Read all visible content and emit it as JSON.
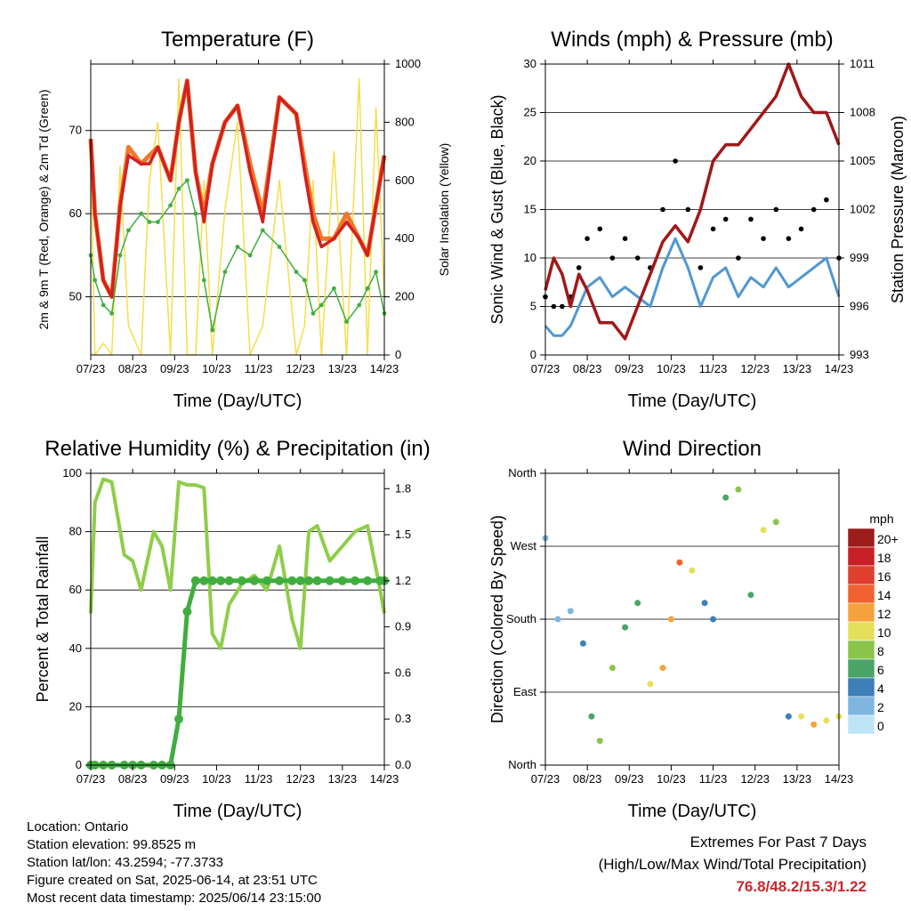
{
  "x_ticks": [
    "07/23",
    "08/23",
    "09/23",
    "10/23",
    "11/23",
    "12/23",
    "13/23",
    "14/23"
  ],
  "colors": {
    "temp_2m": "#d42020",
    "temp_9m": "#f07828",
    "dewpoint": "#3fae3f",
    "solar": "#f5de4a",
    "wind": "#4f97d3",
    "gust": "#000000",
    "pressure": "#a01818",
    "rh": "#8fcd4a",
    "precip": "#3fae3f",
    "extremes": "#c8282d"
  },
  "chart_data": [
    {
      "type": "line",
      "title": "Temperature (F)",
      "xlabel": "Time (Day/UTC)",
      "ylabel": "2m & 9m T (Red, Orange) & 2m Td (Green)",
      "ylabel_right": "Solar Insolation (Yellow)",
      "ylim": [
        43,
        78
      ],
      "yticks": [
        50,
        60,
        70
      ],
      "ylim_right": [
        0,
        1000
      ],
      "yticks_right": [
        0,
        200,
        400,
        600,
        800,
        1000
      ],
      "grid": true,
      "x": [
        0,
        0.1,
        0.3,
        0.5,
        0.7,
        0.9,
        1.2,
        1.4,
        1.6,
        1.9,
        2.1,
        2.3,
        2.5,
        2.7,
        2.9,
        3.2,
        3.5,
        3.8,
        4.1,
        4.5,
        4.9,
        5.1,
        5.3,
        5.5,
        5.8,
        6.1,
        6.4,
        6.6,
        6.8,
        7.0
      ],
      "series": [
        {
          "name": "2m T",
          "values": [
            69,
            60,
            52,
            50,
            61,
            67,
            66,
            66,
            68,
            64,
            71,
            76,
            65,
            59,
            66,
            71,
            73,
            65,
            59,
            74,
            72,
            65,
            59,
            56,
            57,
            59,
            57,
            55,
            61,
            67
          ]
        },
        {
          "name": "9m T",
          "values": [
            69,
            60,
            52,
            50,
            61,
            68,
            66,
            67,
            68,
            64,
            71,
            76,
            65,
            60,
            66,
            71,
            73,
            66,
            60,
            74,
            72,
            66,
            60,
            57,
            57,
            60,
            57,
            55,
            61,
            67
          ]
        },
        {
          "name": "2m Td",
          "values": [
            55,
            52,
            49,
            48,
            55,
            58,
            60,
            59,
            59,
            61,
            63,
            64,
            60,
            52,
            46,
            53,
            56,
            55,
            58,
            56,
            53,
            52,
            48,
            49,
            51,
            47,
            49,
            51,
            53,
            48
          ]
        },
        {
          "name": "Solar",
          "values": [
            700,
            0,
            40,
            0,
            650,
            100,
            0,
            600,
            800,
            0,
            950,
            0,
            0,
            600,
            0,
            500,
            800,
            0,
            100,
            600,
            0,
            100,
            600,
            0,
            700,
            0,
            950,
            0,
            850,
            200
          ]
        }
      ]
    },
    {
      "type": "scatter",
      "title": "Winds (mph) & Pressure (mb)",
      "xlabel": "Time (Day/UTC)",
      "ylabel": "Sonic Wind & Gust (Blue, Black)",
      "ylabel_right": "Station Pressure (Maroon)",
      "ylim": [
        0,
        30
      ],
      "yticks": [
        0,
        5,
        10,
        15,
        20,
        25,
        30
      ],
      "ylim_right": [
        993,
        1011
      ],
      "yticks_right": [
        993,
        996,
        999,
        1002,
        1005,
        1008,
        1011
      ],
      "grid": true,
      "x": [
        0,
        0.2,
        0.4,
        0.6,
        0.8,
        1.0,
        1.3,
        1.6,
        1.9,
        2.2,
        2.5,
        2.8,
        3.1,
        3.4,
        3.7,
        4.0,
        4.3,
        4.6,
        4.9,
        5.2,
        5.5,
        5.8,
        6.1,
        6.4,
        6.7,
        7.0
      ],
      "series": [
        {
          "name": "Sonic Wind",
          "values": [
            3,
            2,
            2,
            3,
            5,
            7,
            8,
            6,
            7,
            6,
            5,
            9,
            12,
            9,
            5,
            8,
            9,
            6,
            8,
            7,
            9,
            7,
            8,
            9,
            10,
            6
          ]
        },
        {
          "name": "Gust",
          "values": [
            6,
            5,
            5,
            6,
            9,
            12,
            13,
            10,
            12,
            10,
            9,
            15,
            20,
            15,
            9,
            13,
            14,
            10,
            14,
            12,
            15,
            12,
            13,
            15,
            16,
            10
          ]
        },
        {
          "name": "Station Pressure",
          "values": [
            997,
            999,
            998,
            996,
            998,
            997,
            995,
            995,
            994,
            996,
            998,
            1000,
            1001,
            1000,
            1002,
            1005,
            1006,
            1006,
            1007,
            1008,
            1009,
            1011,
            1009,
            1008,
            1008,
            1006
          ]
        }
      ]
    },
    {
      "type": "line",
      "title": "Relative Humidity (%) & Precipitation (in)",
      "xlabel": "Time (Day/UTC)",
      "ylabel": "Percent & Total Rainfall",
      "ylim": [
        0,
        100
      ],
      "yticks": [
        0,
        20,
        40,
        60,
        80,
        100
      ],
      "ylim_right": [
        0,
        1.9
      ],
      "yticks_right": [
        0.0,
        0.3,
        0.6,
        0.9,
        1.2,
        1.5,
        1.8
      ],
      "grid": true,
      "x": [
        0,
        0.1,
        0.3,
        0.5,
        0.8,
        1.0,
        1.2,
        1.5,
        1.7,
        1.9,
        2.1,
        2.3,
        2.5,
        2.7,
        2.9,
        3.1,
        3.3,
        3.6,
        3.9,
        4.2,
        4.5,
        4.8,
        5.0,
        5.2,
        5.4,
        5.7,
        6.0,
        6.3,
        6.6,
        6.9,
        7.0
      ],
      "series": [
        {
          "name": "RH",
          "values": [
            52,
            90,
            98,
            97,
            72,
            70,
            60,
            80,
            75,
            60,
            97,
            96,
            96,
            95,
            45,
            40,
            55,
            62,
            65,
            60,
            75,
            50,
            40,
            80,
            82,
            70,
            75,
            80,
            82,
            60,
            52
          ]
        },
        {
          "name": "Precipitation",
          "values": [
            0,
            0,
            0,
            0,
            0,
            0,
            0,
            0,
            0,
            0,
            0.3,
            1.0,
            1.2,
            1.2,
            1.2,
            1.2,
            1.2,
            1.2,
            1.2,
            1.2,
            1.2,
            1.2,
            1.2,
            1.2,
            1.2,
            1.2,
            1.2,
            1.2,
            1.2,
            1.2,
            1.2
          ]
        }
      ]
    },
    {
      "type": "scatter",
      "title": "Wind Direction",
      "xlabel": "Time (Day/UTC)",
      "ylabel": "Direction (Colored By Speed)",
      "ylim": [
        0,
        360
      ],
      "ytick_labels": [
        "North",
        "East",
        "South",
        "West",
        "North"
      ],
      "legend": {
        "title": "mph",
        "labels": [
          "20+",
          "18",
          "16",
          "14",
          "12",
          "10",
          "8",
          "6",
          "4",
          "2",
          "0"
        ],
        "colors": [
          "#9c1c1c",
          "#c72026",
          "#e03e2e",
          "#f0622f",
          "#f5a23c",
          "#e5e05a",
          "#8cc44b",
          "#4aa467",
          "#3d7fb8",
          "#7fb6e0",
          "#bde3f6"
        ],
        "placement": "right"
      },
      "x": [
        0,
        0.3,
        0.6,
        0.9,
        1.1,
        1.3,
        1.6,
        1.9,
        2.2,
        2.5,
        2.8,
        3.0,
        3.2,
        3.5,
        3.8,
        4.0,
        4.3,
        4.6,
        4.9,
        5.2,
        5.5,
        5.8,
        6.1,
        6.4,
        6.7,
        7.0
      ],
      "series": [
        {
          "name": "Direction",
          "values": [
            280,
            180,
            190,
            150,
            60,
            30,
            120,
            170,
            200,
            100,
            120,
            180,
            250,
            240,
            200,
            180,
            330,
            340,
            210,
            290,
            300,
            60,
            60,
            50,
            55,
            60
          ]
        },
        {
          "name": "Speed",
          "values": [
            2,
            2,
            1,
            3,
            5,
            7,
            8,
            6,
            6,
            9,
            12,
            12,
            14,
            10,
            4,
            4,
            6,
            8,
            5,
            9,
            8,
            3,
            10,
            11,
            9,
            10
          ]
        }
      ]
    }
  ],
  "footer": {
    "location": "Location: Ontario",
    "elevation": "Station elevation: 99.8525 m",
    "latlon": "Station lat/lon: 43.2594; -77.3733",
    "created": "Figure created on Sat, 2025-06-14, at 23:51 UTC",
    "recent": "Most recent data timestamp: 2025/06/14 23:15:00"
  },
  "extremes": {
    "title": "Extremes For Past 7 Days",
    "subtitle": "(High/Low/Max Wind/Total Precipitation)",
    "values": "76.8/48.2/15.3/1.22"
  }
}
